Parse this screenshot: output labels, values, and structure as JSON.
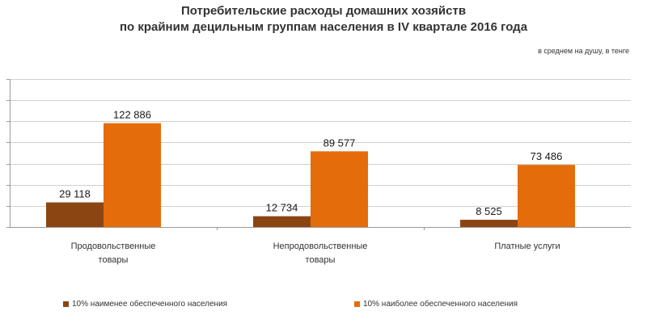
{
  "chart_data": {
    "type": "bar",
    "title_line1": "Потребительские расходы домашних хозяйств",
    "title_line2": "по крайним децильным группам населения в IV квартале 2016 года",
    "unit_note": "в среднем на душу, в тенге",
    "categories": [
      [
        "Продовольственные",
        "товары"
      ],
      [
        "Непродовольственные",
        "товары"
      ],
      [
        "Платные услуги"
      ]
    ],
    "series": [
      {
        "name": "10% наименее обеспеченного населения",
        "color": "#8b4513",
        "values": [
          29118,
          12734,
          8525
        ],
        "labels": [
          "29 118",
          "12 734",
          "8 525"
        ]
      },
      {
        "name": "10% наиболее обеспеченного населения",
        "color": "#e46c0a",
        "values": [
          122886,
          89577,
          73486
        ],
        "labels": [
          "122 886",
          "89 577",
          "73 486"
        ]
      }
    ],
    "ylim": [
      0,
      175000
    ],
    "grid": true,
    "legend_position": "bottom"
  }
}
